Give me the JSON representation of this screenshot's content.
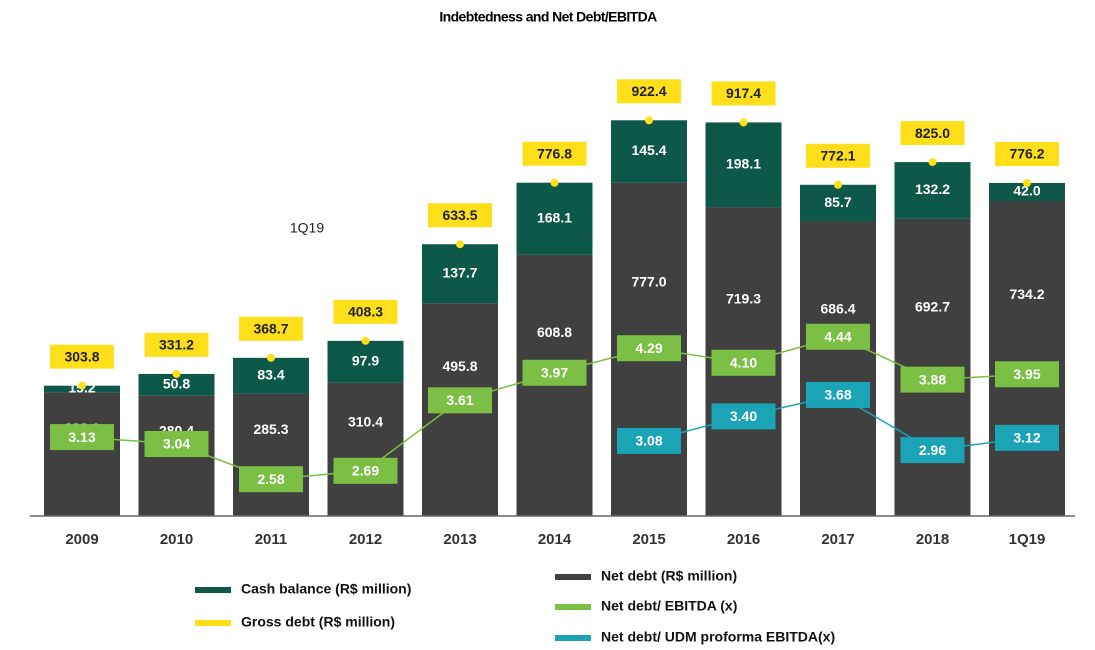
{
  "chart_data": {
    "type": "bar",
    "title": "Indebtedness and Net Debt/EBITDA",
    "annotation": "1Q19",
    "categories": [
      "2009",
      "2010",
      "2011",
      "2012",
      "2013",
      "2014",
      "2015",
      "2016",
      "2017",
      "2018",
      "1Q19"
    ],
    "ylim": [
      0,
      1000
    ],
    "y2lim": [
      2.1,
      7.7
    ],
    "series": [
      {
        "name": "Net debt (R$ million)",
        "color": "#404040",
        "role": "stack",
        "values": [
          288.6,
          280.4,
          285.3,
          310.4,
          495.8,
          608.8,
          777.0,
          719.3,
          686.4,
          692.7,
          734.2
        ],
        "value_labels": [
          "288.6",
          "280.4",
          "285.3",
          "310.4",
          "495.8",
          "608.8",
          "777.0",
          "719.3",
          "686.4",
          "692.7",
          "734.2"
        ]
      },
      {
        "name": "Cash balance (R$ million)",
        "color": "#0d5848",
        "role": "stack",
        "values": [
          15.2,
          50.8,
          83.4,
          97.9,
          137.7,
          168.1,
          145.4,
          198.1,
          85.7,
          132.2,
          42.0
        ],
        "value_labels": [
          "15.2",
          "50.8",
          "83.4",
          "97.9",
          "137.7",
          "168.1",
          "145.4",
          "198.1",
          "85.7",
          "132.2",
          "42.0"
        ]
      },
      {
        "name": "Gross debt (R$ million)",
        "color": "#ffdf1a",
        "role": "total",
        "values": [
          303.8,
          331.2,
          368.7,
          408.3,
          633.5,
          776.8,
          922.4,
          917.4,
          772.1,
          825.0,
          776.2
        ],
        "value_labels": [
          "303.8",
          "331.2",
          "368.7",
          "408.3",
          "633.5",
          "776.8",
          "922.4",
          "917.4",
          "772.1",
          "825.0",
          "776.2"
        ]
      },
      {
        "name": "Net debt/ EBITDA (x)",
        "color": "#7bbf44",
        "role": "line",
        "axis": "y2",
        "values": [
          3.13,
          3.04,
          2.58,
          2.69,
          3.61,
          3.97,
          4.29,
          4.1,
          4.44,
          3.88,
          3.95
        ],
        "value_labels": [
          "3.13",
          "3.04",
          "2.58",
          "2.69",
          "3.61",
          "3.97",
          "4.29",
          "4.10",
          "4.44",
          "3.88",
          "3.95"
        ]
      },
      {
        "name": "Net debt/ UDM proforma EBITDA(x)",
        "color": "#1ba3b6",
        "role": "line",
        "axis": "y2",
        "values": [
          null,
          null,
          null,
          null,
          null,
          null,
          3.08,
          3.4,
          3.68,
          2.96,
          3.12
        ],
        "value_labels": [
          null,
          null,
          null,
          null,
          null,
          null,
          "3.08",
          "3.40",
          "3.68",
          "2.96",
          "3.12"
        ]
      }
    ]
  }
}
